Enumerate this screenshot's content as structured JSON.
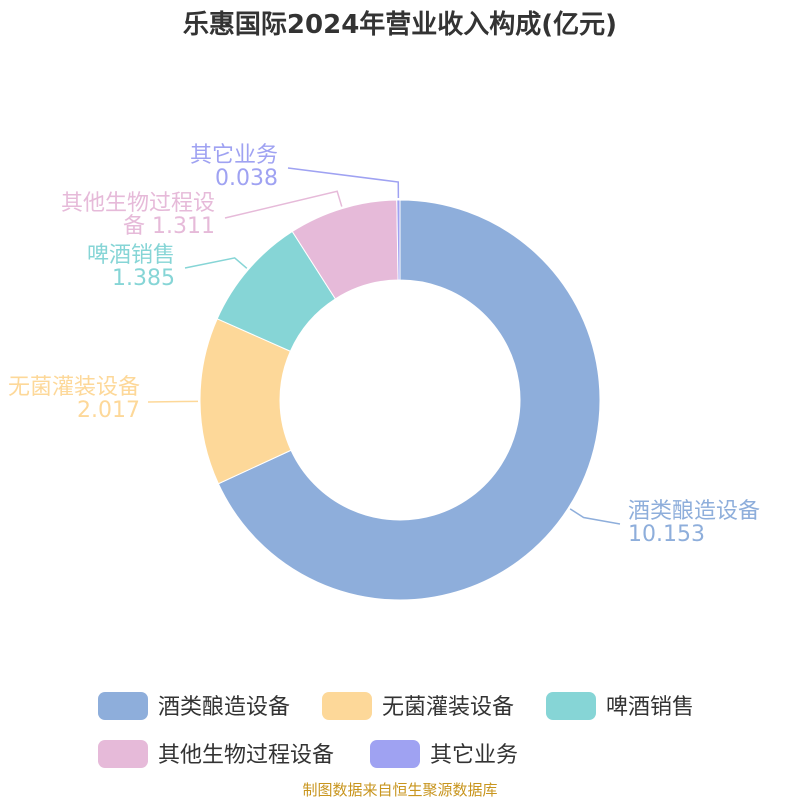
{
  "title": "乐惠国际2024年营业收入构成(亿元)",
  "source": "制图数据来自恒生聚源数据库",
  "chart_data": {
    "type": "pie",
    "variant": "donut",
    "title": "乐惠国际2024年营业收入构成(亿元)",
    "legend_position": "bottom",
    "slices": [
      {
        "name": "酒类酿造设备",
        "value": 10.153,
        "value_label": "10.153",
        "color": "#8eaedb"
      },
      {
        "name": "无菌灌装设备",
        "value": 2.017,
        "value_label": "2.017",
        "color": "#fdd899"
      },
      {
        "name": "啤酒销售",
        "value": 1.385,
        "value_label": "1.385",
        "color": "#86d5d6"
      },
      {
        "name": "其他生物过程设备",
        "value": 1.311,
        "value_label": "1.311",
        "color": "#e6bad9"
      },
      {
        "name": "其它业务",
        "value": 0.038,
        "value_label": "0.038",
        "color": "#9fa2f2"
      }
    ]
  }
}
